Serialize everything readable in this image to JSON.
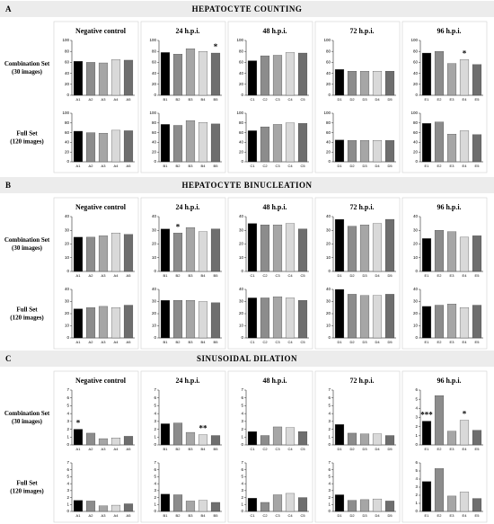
{
  "sections": [
    {
      "letter": "A",
      "title": "HEPATOCYTE COUNTING",
      "columns": [
        "Negative control",
        "24 h.p.i.",
        "48 h.p.i.",
        "72 h.p.i.",
        "96 h.p.i."
      ],
      "rows": [
        [
          "Combination Set",
          "(30 images)"
        ],
        [
          "Full Set",
          "(120 images)"
        ]
      ]
    },
    {
      "letter": "B",
      "title": "HEPATOCYTE BINUCLEATION",
      "columns": [
        "Negative control",
        "24 h.p.i.",
        "48 h.p.i.",
        "72 h.p.i.",
        "96 h.p.i."
      ],
      "rows": [
        [
          "Combination Set",
          "(30 images)"
        ],
        [
          "Full Set",
          "(120 images)"
        ]
      ]
    },
    {
      "letter": "C",
      "title": "SINUSOIDAL DILATION",
      "columns": [
        "Negative control",
        "24 h.p.i.",
        "48 h.p.i.",
        "72 h.p.i.",
        "96 h.p.i."
      ],
      "rows": [
        [
          "Combination Set",
          "(30 images)"
        ],
        [
          "Full Set",
          "(120 images)"
        ]
      ]
    }
  ],
  "chart_data": [
    {
      "type": "bar",
      "categories": [
        "A1",
        "A2",
        "A3",
        "A4",
        "A5"
      ],
      "values": [
        62,
        60,
        59,
        65,
        64
      ],
      "colors": [
        "#000000",
        "#8c8c8c",
        "#a6a6a6",
        "#d9d9d9",
        "#6e6e6e"
      ],
      "ylim": [
        0,
        100
      ],
      "yticks": [
        0,
        20,
        40,
        60,
        80,
        100
      ]
    },
    {
      "type": "bar",
      "categories": [
        "B1",
        "B2",
        "B3",
        "B4",
        "B5"
      ],
      "values": [
        78,
        75,
        85,
        80,
        77
      ],
      "colors": [
        "#000000",
        "#8c8c8c",
        "#a6a6a6",
        "#d9d9d9",
        "#6e6e6e"
      ],
      "ylim": [
        0,
        100
      ],
      "yticks": [
        0,
        20,
        40,
        60,
        80,
        100
      ],
      "annotations": [
        {
          "text": "*",
          "category": "B5"
        }
      ]
    },
    {
      "type": "bar",
      "categories": [
        "C1",
        "C2",
        "C3",
        "C4",
        "C5"
      ],
      "values": [
        63,
        72,
        73,
        78,
        77
      ],
      "colors": [
        "#000000",
        "#8c8c8c",
        "#a6a6a6",
        "#d9d9d9",
        "#6e6e6e"
      ],
      "ylim": [
        0,
        100
      ],
      "yticks": [
        0,
        20,
        40,
        60,
        80,
        100
      ]
    },
    {
      "type": "bar",
      "categories": [
        "D1",
        "D2",
        "D3",
        "D4",
        "D5"
      ],
      "values": [
        47,
        44,
        44,
        44,
        44
      ],
      "colors": [
        "#000000",
        "#8c8c8c",
        "#a6a6a6",
        "#d9d9d9",
        "#6e6e6e"
      ],
      "ylim": [
        0,
        100
      ],
      "yticks": [
        0,
        20,
        40,
        60,
        80,
        100
      ]
    },
    {
      "type": "bar",
      "categories": [
        "E1",
        "E2",
        "E3",
        "E4",
        "E5"
      ],
      "values": [
        77,
        80,
        58,
        65,
        56
      ],
      "colors": [
        "#000000",
        "#8c8c8c",
        "#a6a6a6",
        "#d9d9d9",
        "#6e6e6e"
      ],
      "ylim": [
        0,
        100
      ],
      "yticks": [
        0,
        20,
        40,
        60,
        80,
        100
      ],
      "annotations": [
        {
          "text": "*",
          "category": "E4"
        }
      ]
    },
    {
      "type": "bar",
      "categories": [
        "A1",
        "A2",
        "A3",
        "A4",
        "A5"
      ],
      "values": [
        63,
        60,
        59,
        65,
        64
      ],
      "colors": [
        "#000000",
        "#8c8c8c",
        "#a6a6a6",
        "#d9d9d9",
        "#6e6e6e"
      ],
      "ylim": [
        0,
        100
      ],
      "yticks": [
        0,
        20,
        40,
        60,
        80,
        100
      ]
    },
    {
      "type": "bar",
      "categories": [
        "B1",
        "B2",
        "B3",
        "B4",
        "B5"
      ],
      "values": [
        77,
        75,
        85,
        81,
        78
      ],
      "colors": [
        "#000000",
        "#8c8c8c",
        "#a6a6a6",
        "#d9d9d9",
        "#6e6e6e"
      ],
      "ylim": [
        0,
        100
      ],
      "yticks": [
        0,
        20,
        40,
        60,
        80,
        100
      ]
    },
    {
      "type": "bar",
      "categories": [
        "C1",
        "C2",
        "C3",
        "C4",
        "C5"
      ],
      "values": [
        64,
        72,
        77,
        80,
        79
      ],
      "colors": [
        "#000000",
        "#8c8c8c",
        "#a6a6a6",
        "#d9d9d9",
        "#6e6e6e"
      ],
      "ylim": [
        0,
        100
      ],
      "yticks": [
        0,
        20,
        40,
        60,
        80,
        100
      ]
    },
    {
      "type": "bar",
      "categories": [
        "D1",
        "D2",
        "D3",
        "D4",
        "D5"
      ],
      "values": [
        45,
        44,
        44,
        44,
        44
      ],
      "colors": [
        "#000000",
        "#8c8c8c",
        "#a6a6a6",
        "#d9d9d9",
        "#6e6e6e"
      ],
      "ylim": [
        0,
        100
      ],
      "yticks": [
        0,
        20,
        40,
        60,
        80,
        100
      ]
    },
    {
      "type": "bar",
      "categories": [
        "E1",
        "E2",
        "E3",
        "E4",
        "E5"
      ],
      "values": [
        79,
        82,
        57,
        64,
        56
      ],
      "colors": [
        "#000000",
        "#8c8c8c",
        "#a6a6a6",
        "#d9d9d9",
        "#6e6e6e"
      ],
      "ylim": [
        0,
        100
      ],
      "yticks": [
        0,
        20,
        40,
        60,
        80,
        100
      ]
    },
    {
      "type": "bar",
      "categories": [
        "A1",
        "A2",
        "A3",
        "A4",
        "A5"
      ],
      "values": [
        25,
        25,
        26,
        28,
        27
      ],
      "colors": [
        "#000000",
        "#8c8c8c",
        "#a6a6a6",
        "#d9d9d9",
        "#6e6e6e"
      ],
      "ylim": [
        0,
        40
      ],
      "yticks": [
        0,
        10,
        20,
        30,
        40
      ]
    },
    {
      "type": "bar",
      "categories": [
        "B1",
        "B2",
        "B3",
        "B4",
        "B5"
      ],
      "values": [
        31,
        28,
        32,
        29,
        31
      ],
      "colors": [
        "#000000",
        "#8c8c8c",
        "#a6a6a6",
        "#d9d9d9",
        "#6e6e6e"
      ],
      "ylim": [
        0,
        40
      ],
      "yticks": [
        0,
        10,
        20,
        30,
        40
      ],
      "annotations": [
        {
          "text": "*",
          "category": "B2"
        }
      ]
    },
    {
      "type": "bar",
      "categories": [
        "C1",
        "C2",
        "C3",
        "C4",
        "C5"
      ],
      "values": [
        35,
        34,
        34,
        35,
        31
      ],
      "colors": [
        "#000000",
        "#8c8c8c",
        "#a6a6a6",
        "#d9d9d9",
        "#6e6e6e"
      ],
      "ylim": [
        0,
        40
      ],
      "yticks": [
        0,
        10,
        20,
        30,
        40
      ]
    },
    {
      "type": "bar",
      "categories": [
        "D1",
        "D2",
        "D3",
        "D4",
        "D5"
      ],
      "values": [
        38,
        33,
        34,
        35,
        38
      ],
      "colors": [
        "#000000",
        "#8c8c8c",
        "#a6a6a6",
        "#d9d9d9",
        "#6e6e6e"
      ],
      "ylim": [
        0,
        40
      ],
      "yticks": [
        0,
        10,
        20,
        30,
        40
      ]
    },
    {
      "type": "bar",
      "categories": [
        "E1",
        "E2",
        "E3",
        "E4",
        "E5"
      ],
      "values": [
        24,
        30,
        29,
        25,
        26
      ],
      "colors": [
        "#000000",
        "#8c8c8c",
        "#a6a6a6",
        "#d9d9d9",
        "#6e6e6e"
      ],
      "ylim": [
        0,
        40
      ],
      "yticks": [
        0,
        10,
        20,
        30,
        40
      ]
    },
    {
      "type": "bar",
      "categories": [
        "A1",
        "A2",
        "A3",
        "A4",
        "A5"
      ],
      "values": [
        24,
        25,
        26,
        25,
        27
      ],
      "colors": [
        "#000000",
        "#8c8c8c",
        "#a6a6a6",
        "#d9d9d9",
        "#6e6e6e"
      ],
      "ylim": [
        0,
        40
      ],
      "yticks": [
        0,
        10,
        20,
        30,
        40
      ]
    },
    {
      "type": "bar",
      "categories": [
        "B1",
        "B2",
        "B3",
        "B4",
        "B5"
      ],
      "values": [
        31,
        31,
        31,
        30,
        29
      ],
      "colors": [
        "#000000",
        "#8c8c8c",
        "#a6a6a6",
        "#d9d9d9",
        "#6e6e6e"
      ],
      "ylim": [
        0,
        40
      ],
      "yticks": [
        0,
        10,
        20,
        30,
        40
      ]
    },
    {
      "type": "bar",
      "categories": [
        "C1",
        "C2",
        "C3",
        "C4",
        "C5"
      ],
      "values": [
        33,
        33,
        34,
        33,
        31
      ],
      "colors": [
        "#000000",
        "#8c8c8c",
        "#a6a6a6",
        "#d9d9d9",
        "#6e6e6e"
      ],
      "ylim": [
        0,
        40
      ],
      "yticks": [
        0,
        10,
        20,
        30,
        40
      ]
    },
    {
      "type": "bar",
      "categories": [
        "D1",
        "D2",
        "D3",
        "D4",
        "D5"
      ],
      "values": [
        40,
        36,
        35,
        35,
        36
      ],
      "colors": [
        "#000000",
        "#8c8c8c",
        "#a6a6a6",
        "#d9d9d9",
        "#6e6e6e"
      ],
      "ylim": [
        0,
        40
      ],
      "yticks": [
        0,
        10,
        20,
        30,
        40
      ]
    },
    {
      "type": "bar",
      "categories": [
        "E1",
        "E2",
        "E3",
        "E4",
        "E5"
      ],
      "values": [
        26,
        27,
        28,
        25,
        27
      ],
      "colors": [
        "#000000",
        "#8c8c8c",
        "#a6a6a6",
        "#d9d9d9",
        "#6e6e6e"
      ],
      "ylim": [
        0,
        40
      ],
      "yticks": [
        0,
        10,
        20,
        30,
        40
      ]
    },
    {
      "type": "bar",
      "categories": [
        "A1",
        "A2",
        "A3",
        "A4",
        "A5"
      ],
      "values": [
        2.0,
        1.5,
        0.8,
        0.9,
        1.1
      ],
      "colors": [
        "#000000",
        "#8c8c8c",
        "#a6a6a6",
        "#d9d9d9",
        "#6e6e6e"
      ],
      "ylim": [
        0,
        7
      ],
      "yticks": [
        0,
        1,
        2,
        3,
        4,
        5,
        6,
        7
      ],
      "annotations": [
        {
          "text": "*",
          "category": "A1"
        }
      ]
    },
    {
      "type": "bar",
      "categories": [
        "B1",
        "B2",
        "B3",
        "B4",
        "B5"
      ],
      "values": [
        2.7,
        2.8,
        1.6,
        1.3,
        1.2
      ],
      "colors": [
        "#000000",
        "#8c8c8c",
        "#a6a6a6",
        "#d9d9d9",
        "#6e6e6e"
      ],
      "ylim": [
        0,
        7
      ],
      "yticks": [
        0,
        1,
        2,
        3,
        4,
        5,
        6,
        7
      ],
      "annotations": [
        {
          "text": "**",
          "category": "B4"
        }
      ]
    },
    {
      "type": "bar",
      "categories": [
        "C1",
        "C2",
        "C3",
        "C4",
        "C5"
      ],
      "values": [
        1.7,
        1.2,
        2.3,
        2.2,
        1.7
      ],
      "colors": [
        "#000000",
        "#8c8c8c",
        "#a6a6a6",
        "#d9d9d9",
        "#6e6e6e"
      ],
      "ylim": [
        0,
        7
      ],
      "yticks": [
        0,
        1,
        2,
        3,
        4,
        5,
        6,
        7
      ]
    },
    {
      "type": "bar",
      "categories": [
        "D1",
        "D2",
        "D3",
        "D4",
        "D5"
      ],
      "values": [
        2.6,
        1.5,
        1.4,
        1.4,
        1.2
      ],
      "colors": [
        "#000000",
        "#8c8c8c",
        "#a6a6a6",
        "#d9d9d9",
        "#6e6e6e"
      ],
      "ylim": [
        0,
        7
      ],
      "yticks": [
        0,
        1,
        2,
        3,
        4,
        5,
        6,
        7
      ]
    },
    {
      "type": "bar",
      "categories": [
        "E1",
        "E2",
        "E3",
        "E4",
        "E5"
      ],
      "values": [
        2.6,
        5.4,
        1.5,
        2.7,
        1.6
      ],
      "colors": [
        "#000000",
        "#8c8c8c",
        "#a6a6a6",
        "#d9d9d9",
        "#6e6e6e"
      ],
      "ylim": [
        0,
        6
      ],
      "yticks": [
        0,
        1,
        2,
        3,
        4,
        5,
        6
      ],
      "annotations": [
        {
          "text": "***",
          "category": "E1"
        },
        {
          "text": "*",
          "category": "E4"
        }
      ]
    },
    {
      "type": "bar",
      "categories": [
        "A1",
        "A2",
        "A3",
        "A4",
        "A5"
      ],
      "values": [
        1.6,
        1.5,
        0.8,
        0.9,
        1.1
      ],
      "colors": [
        "#000000",
        "#8c8c8c",
        "#a6a6a6",
        "#d9d9d9",
        "#6e6e6e"
      ],
      "ylim": [
        0,
        7
      ],
      "yticks": [
        0,
        1,
        2,
        3,
        4,
        5,
        6,
        7
      ]
    },
    {
      "type": "bar",
      "categories": [
        "B1",
        "B2",
        "B3",
        "B4",
        "B5"
      ],
      "values": [
        2.5,
        2.4,
        1.5,
        1.6,
        1.3
      ],
      "colors": [
        "#000000",
        "#8c8c8c",
        "#a6a6a6",
        "#d9d9d9",
        "#6e6e6e"
      ],
      "ylim": [
        0,
        7
      ],
      "yticks": [
        0,
        1,
        2,
        3,
        4,
        5,
        6,
        7
      ]
    },
    {
      "type": "bar",
      "categories": [
        "C1",
        "C2",
        "C3",
        "C4",
        "C5"
      ],
      "values": [
        1.9,
        1.3,
        2.4,
        2.6,
        2.0
      ],
      "colors": [
        "#000000",
        "#8c8c8c",
        "#a6a6a6",
        "#d9d9d9",
        "#6e6e6e"
      ],
      "ylim": [
        0,
        7
      ],
      "yticks": [
        0,
        1,
        2,
        3,
        4,
        5,
        6,
        7
      ]
    },
    {
      "type": "bar",
      "categories": [
        "D1",
        "D2",
        "D3",
        "D4",
        "D5"
      ],
      "values": [
        2.4,
        1.6,
        1.7,
        1.8,
        1.5
      ],
      "colors": [
        "#000000",
        "#8c8c8c",
        "#a6a6a6",
        "#d9d9d9",
        "#6e6e6e"
      ],
      "ylim": [
        0,
        7
      ],
      "yticks": [
        0,
        1,
        2,
        3,
        4,
        5,
        6,
        7
      ]
    },
    {
      "type": "bar",
      "categories": [
        "E1",
        "E2",
        "E3",
        "E4",
        "E5"
      ],
      "values": [
        3.7,
        5.3,
        1.9,
        2.4,
        1.6
      ],
      "colors": [
        "#000000",
        "#8c8c8c",
        "#a6a6a6",
        "#d9d9d9",
        "#6e6e6e"
      ],
      "ylim": [
        0,
        6
      ],
      "yticks": [
        0,
        1,
        2,
        3,
        4,
        5,
        6
      ]
    }
  ]
}
